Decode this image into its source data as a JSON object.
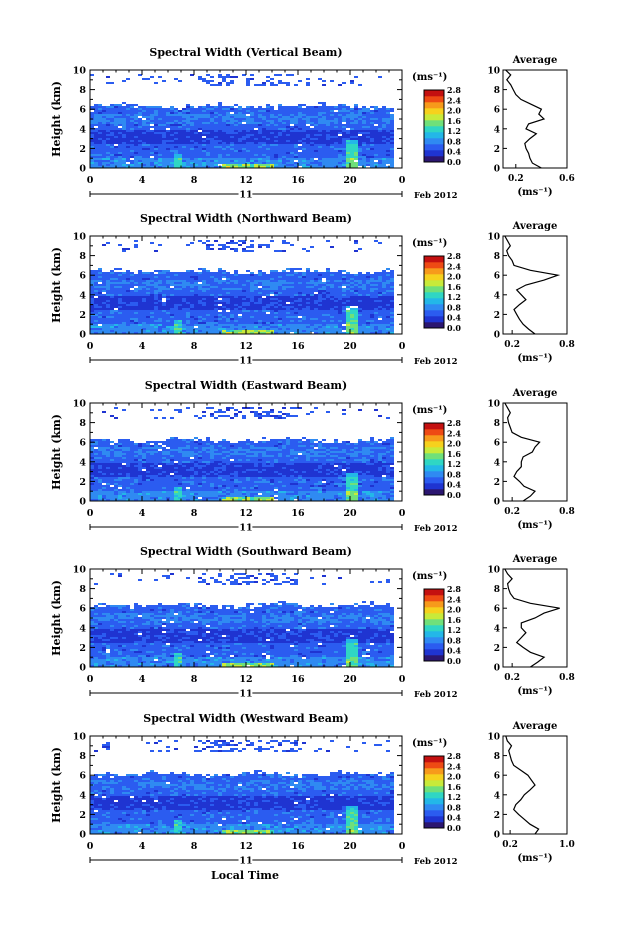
{
  "figure": {
    "xlabel": "Local Time",
    "date_label": "Feb 2012",
    "day_label": "11",
    "ylabel": "Height (km)",
    "colorbar_unit": "(ms⁻¹)",
    "avg_title": "Average",
    "avg_xlabel": "(ms⁻¹)",
    "colormap": [
      "#2b1670",
      "#1f34d1",
      "#2b5cf0",
      "#2f8af2",
      "#23b7e8",
      "#2fd6c4",
      "#6fe07a",
      "#c8ea3a",
      "#f6d11d",
      "#f79a1b",
      "#ee4a14",
      "#c41010"
    ]
  },
  "chart_data": [
    {
      "type": "heatmap",
      "title": "Spectral Width (Vertical Beam)",
      "xticks": [
        "0",
        "4",
        "8",
        "12",
        "16",
        "20",
        "0"
      ],
      "yticks": [
        "0",
        "2",
        "4",
        "6",
        "8",
        "10"
      ],
      "xlim": [
        0,
        24
      ],
      "ylim": [
        0,
        10
      ],
      "colorbar": {
        "ticks": [
          "0.0",
          "0.4",
          "0.8",
          "1.2",
          "1.6",
          "2.0",
          "2.4",
          "2.8"
        ],
        "range": [
          0,
          2.8
        ]
      },
      "cloud_top_km": 6.3,
      "average_profile": {
        "xticks": [
          "0.2",
          "0.6"
        ],
        "xlim": [
          0.1,
          0.6
        ],
        "height": [
          0,
          0.5,
          1,
          1.5,
          2,
          2.5,
          3,
          3.5,
          4,
          4.5,
          5,
          5.5,
          6,
          6.5,
          7,
          7.5,
          8,
          8.5,
          9,
          9.5,
          10
        ],
        "value": [
          0.4,
          0.33,
          0.31,
          0.3,
          0.28,
          0.27,
          0.31,
          0.36,
          0.28,
          0.3,
          0.42,
          0.38,
          0.4,
          0.32,
          0.24,
          0.2,
          0.18,
          0.16,
          0.13,
          0.16,
          0.12
        ]
      }
    },
    {
      "type": "heatmap",
      "title": "Spectral Width (Northward Beam)",
      "xticks": [
        "0",
        "4",
        "8",
        "12",
        "16",
        "20",
        "0"
      ],
      "yticks": [
        "0",
        "2",
        "4",
        "6",
        "8",
        "10"
      ],
      "xlim": [
        0,
        24
      ],
      "ylim": [
        0,
        10
      ],
      "colorbar": {
        "ticks": [
          "0.0",
          "0.4",
          "0.8",
          "1.2",
          "1.6",
          "2.0",
          "2.4",
          "2.8"
        ],
        "range": [
          0,
          2.8
        ]
      },
      "cloud_top_km": 6.4,
      "average_profile": {
        "xticks": [
          "0.2",
          "0.8"
        ],
        "xlim": [
          0.1,
          0.8
        ],
        "height": [
          0,
          0.5,
          1,
          1.5,
          2,
          2.5,
          3,
          3.5,
          4,
          4.5,
          5,
          5.5,
          6,
          6.5,
          7,
          7.5,
          8,
          8.5,
          9,
          9.5,
          10
        ],
        "value": [
          0.45,
          0.38,
          0.32,
          0.28,
          0.25,
          0.22,
          0.28,
          0.35,
          0.3,
          0.25,
          0.35,
          0.55,
          0.7,
          0.4,
          0.22,
          0.2,
          0.16,
          0.14,
          0.18,
          0.15,
          0.12
        ]
      }
    },
    {
      "type": "heatmap",
      "title": "Spectral Width (Eastward Beam)",
      "xticks": [
        "0",
        "4",
        "8",
        "12",
        "16",
        "20",
        "0"
      ],
      "yticks": [
        "0",
        "2",
        "4",
        "6",
        "8",
        "10"
      ],
      "xlim": [
        0,
        24
      ],
      "ylim": [
        0,
        10
      ],
      "colorbar": {
        "ticks": [
          "0.0",
          "0.4",
          "0.8",
          "1.2",
          "1.6",
          "2.0",
          "2.4",
          "2.8"
        ],
        "range": [
          0,
          2.8
        ]
      },
      "cloud_top_km": 6.2,
      "average_profile": {
        "xticks": [
          "0.2",
          "0.8"
        ],
        "xlim": [
          0.1,
          0.8
        ],
        "height": [
          0,
          0.5,
          1,
          1.5,
          2,
          2.5,
          3,
          3.5,
          4,
          4.5,
          5,
          5.5,
          6,
          6.5,
          7,
          7.5,
          8,
          8.5,
          9,
          9.5,
          10
        ],
        "value": [
          0.32,
          0.4,
          0.45,
          0.33,
          0.28,
          0.22,
          0.25,
          0.3,
          0.3,
          0.32,
          0.42,
          0.45,
          0.5,
          0.3,
          0.2,
          0.18,
          0.16,
          0.15,
          0.18,
          0.15,
          0.12
        ]
      }
    },
    {
      "type": "heatmap",
      "title": "Spectral Width (Southward Beam)",
      "xticks": [
        "0",
        "4",
        "8",
        "12",
        "16",
        "20",
        "0"
      ],
      "yticks": [
        "0",
        "2",
        "4",
        "6",
        "8",
        "10"
      ],
      "xlim": [
        0,
        24
      ],
      "ylim": [
        0,
        10
      ],
      "colorbar": {
        "ticks": [
          "0.0",
          "0.4",
          "0.8",
          "1.2",
          "1.6",
          "2.0",
          "2.4",
          "2.8"
        ],
        "range": [
          0,
          2.8
        ]
      },
      "cloud_top_km": 6.3,
      "average_profile": {
        "xticks": [
          "0.2",
          "0.8"
        ],
        "xlim": [
          0.1,
          0.8
        ],
        "height": [
          0,
          0.5,
          1,
          1.5,
          2,
          2.5,
          3,
          3.5,
          4,
          4.5,
          5,
          5.5,
          6,
          6.5,
          7,
          7.5,
          8,
          8.5,
          9,
          9.5,
          10
        ],
        "value": [
          0.4,
          0.48,
          0.55,
          0.4,
          0.32,
          0.25,
          0.3,
          0.35,
          0.3,
          0.3,
          0.45,
          0.55,
          0.72,
          0.4,
          0.22,
          0.18,
          0.16,
          0.15,
          0.2,
          0.15,
          0.12
        ]
      }
    },
    {
      "type": "heatmap",
      "title": "Spectral Width (Westward Beam)",
      "xticks": [
        "0",
        "4",
        "8",
        "12",
        "16",
        "20",
        "0"
      ],
      "yticks": [
        "0",
        "2",
        "4",
        "6",
        "8",
        "10"
      ],
      "xlim": [
        0,
        24
      ],
      "ylim": [
        0,
        10
      ],
      "colorbar": {
        "ticks": [
          "0.0",
          "0.4",
          "0.8",
          "1.2",
          "1.6",
          "2.0",
          "2.4",
          "2.8"
        ],
        "range": [
          0,
          2.8
        ]
      },
      "cloud_top_km": 6.1,
      "average_profile": {
        "xticks": [
          "0.2",
          "1.0"
        ],
        "xlim": [
          0.1,
          1.0
        ],
        "height": [
          0,
          0.5,
          1,
          1.5,
          2,
          2.5,
          3,
          3.5,
          4,
          4.5,
          5,
          5.5,
          6,
          6.5,
          7,
          7.5,
          8,
          8.5,
          9,
          9.5,
          10
        ],
        "value": [
          0.55,
          0.6,
          0.48,
          0.4,
          0.32,
          0.25,
          0.28,
          0.35,
          0.4,
          0.48,
          0.55,
          0.5,
          0.45,
          0.35,
          0.25,
          0.22,
          0.2,
          0.18,
          0.22,
          0.16,
          0.14
        ]
      }
    }
  ]
}
